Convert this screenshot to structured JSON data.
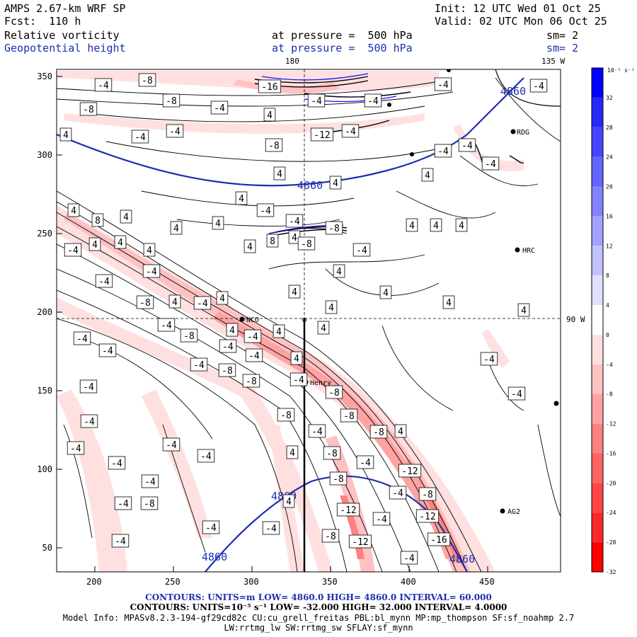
{
  "header": {
    "model": "AMPS 2.67-km WRF SP",
    "fcst_label": "Fcst:",
    "fcst_value": "110 h",
    "init": "Init: 12 UTC Wed 01 Oct 25",
    "valid": "Valid: 02 UTC Mon 06 Oct 25",
    "field1": "Relative vorticity",
    "field2": "Geopotential height",
    "pressure_label": "at pressure =",
    "pressure1": "500 hPa",
    "pressure2": "500 hPa",
    "sm1": "sm= 2",
    "sm2": "sm= 2"
  },
  "map": {
    "top_labels": [
      "180",
      "135 W"
    ],
    "right_label": "90 W",
    "x_ticks": [
      "200",
      "250",
      "300",
      "350",
      "400",
      "450"
    ],
    "y_ticks": [
      "50",
      "100",
      "150",
      "200",
      "250",
      "300",
      "350"
    ],
    "stations": [
      "RDG",
      "HRC",
      "NCO",
      "Henry",
      "AG2"
    ],
    "height_label": "4860",
    "colors": {
      "height_contour": "#1c2fb0",
      "pos_max": "#0000ff",
      "neg_max": "#ff0000",
      "coast": "#000000"
    }
  },
  "colorbar": {
    "units": "10⁻⁵ s⁻¹",
    "ticks": [
      "32",
      "28",
      "24",
      "20",
      "16",
      "12",
      "8",
      "4",
      "0",
      "-4",
      "-8",
      "-12",
      "-16",
      "-20",
      "-24",
      "-28",
      "-32"
    ],
    "colors": [
      "#0000ff",
      "#2727ff",
      "#4545ff",
      "#6464ff",
      "#8282ff",
      "#a2a2ff",
      "#c1c1ff",
      "#e0e0ff",
      "#ffffff",
      "#ffe0e0",
      "#ffc1c1",
      "#ffa2a2",
      "#ff8282",
      "#ff6464",
      "#ff4545",
      "#ff2727",
      "#ff0000"
    ]
  },
  "footer": {
    "line1": "CONTOURS: UNITS=m LOW= 4860.0 HIGH= 4860.0 INTERVAL= 60.000",
    "line2": "CONTOURS: UNITS=10⁻⁵ s⁻¹ LOW= -32.000 HIGH= 32.000 INTERVAL= 4.0000",
    "line3": "Model Info: MPASv8.2.3-194-gf29cd82c CU:cu_grell_freitas PBL:bl_mynn MP:mp_thompson SF:sf_noahmp 2.7",
    "line4": "LW:rrtmg_lw SW:rrtmg_sw SFLAY:sf_mynn"
  }
}
